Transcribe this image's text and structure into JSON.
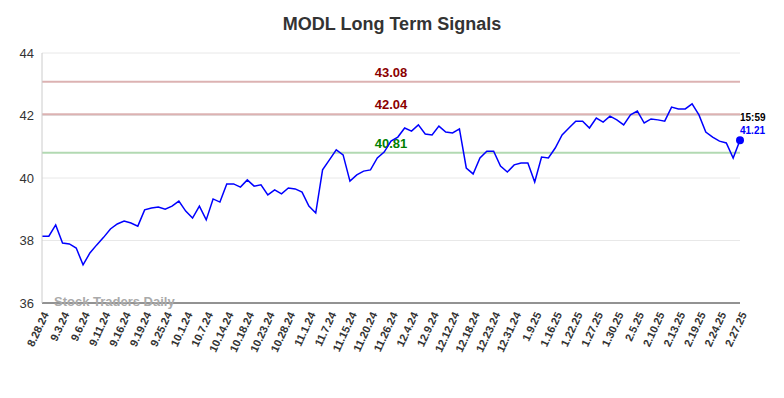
{
  "chart_data": {
    "type": "line",
    "title": "MODL Long Term Signals",
    "categories": [
      "8.28.24",
      null,
      null,
      "9.3.24",
      null,
      null,
      "9.6.24",
      null,
      null,
      "9.11.24",
      null,
      null,
      "9.16.24",
      null,
      null,
      "9.19.24",
      null,
      null,
      "9.25.24",
      null,
      null,
      "10.1.24",
      null,
      null,
      "10.7.24",
      null,
      null,
      "10.14.24",
      null,
      null,
      "10.18.24",
      null,
      null,
      "10.23.24",
      null,
      null,
      "10.28.24",
      null,
      null,
      "11.1.24",
      null,
      null,
      "11.7.24",
      null,
      null,
      "11.15.24",
      null,
      null,
      "11.20.24",
      null,
      null,
      "11.26.24",
      null,
      null,
      "12.4.24",
      null,
      null,
      "12.9.24",
      null,
      null,
      "12.12.24",
      null,
      null,
      "12.18.24",
      null,
      null,
      "12.23.24",
      null,
      null,
      "12.31.24",
      null,
      null,
      "1.9.25",
      null,
      null,
      "1.16.25",
      null,
      null,
      "1.22.25",
      null,
      null,
      "1.27.25",
      null,
      null,
      "1.30.25",
      null,
      null,
      "2.5.25",
      null,
      null,
      "2.10.25",
      null,
      null,
      "2.13.25",
      null,
      null,
      "2.19.25",
      null,
      null,
      "2.24.25",
      null,
      null,
      "2.27.25"
    ],
    "values": [
      38.14,
      38.14,
      38.5,
      37.92,
      37.89,
      37.76,
      37.22,
      37.6,
      37.86,
      38.1,
      38.37,
      38.53,
      38.62,
      38.56,
      38.46,
      38.98,
      39.04,
      39.07,
      39.0,
      39.1,
      39.26,
      38.94,
      38.72,
      39.1,
      38.66,
      39.33,
      39.23,
      39.81,
      39.81,
      39.71,
      39.94,
      39.74,
      39.78,
      39.46,
      39.62,
      39.49,
      39.68,
      39.65,
      39.55,
      39.1,
      38.88,
      40.26,
      40.58,
      40.9,
      40.74,
      39.9,
      40.1,
      40.22,
      40.26,
      40.64,
      40.83,
      41.18,
      41.31,
      41.6,
      41.5,
      41.7,
      41.41,
      41.38,
      41.66,
      41.47,
      41.44,
      41.57,
      40.32,
      40.13,
      40.64,
      40.86,
      40.86,
      40.38,
      40.19,
      40.42,
      40.48,
      40.48,
      39.87,
      40.67,
      40.64,
      40.96,
      41.38,
      41.6,
      41.82,
      41.82,
      41.6,
      41.92,
      41.79,
      41.98,
      41.86,
      41.7,
      42.02,
      42.14,
      41.76,
      41.89,
      41.86,
      41.82,
      42.27,
      42.21,
      42.21,
      42.37,
      42.02,
      41.47,
      41.31,
      41.18,
      41.12,
      40.64,
      41.21
    ],
    "color": "#0000ff",
    "ylim": [
      36,
      44
    ],
    "yticks": [
      36,
      38,
      40,
      42,
      44
    ],
    "grid": true,
    "hlines": [
      {
        "value": 43.08,
        "color": "#8b0000"
      },
      {
        "value": 42.04,
        "color": "#8b0000"
      },
      {
        "value": 40.81,
        "color": "#008000"
      }
    ],
    "last_point": {
      "time": "15:59",
      "value": 41.21
    },
    "watermark": "Stock Traders Daily"
  }
}
